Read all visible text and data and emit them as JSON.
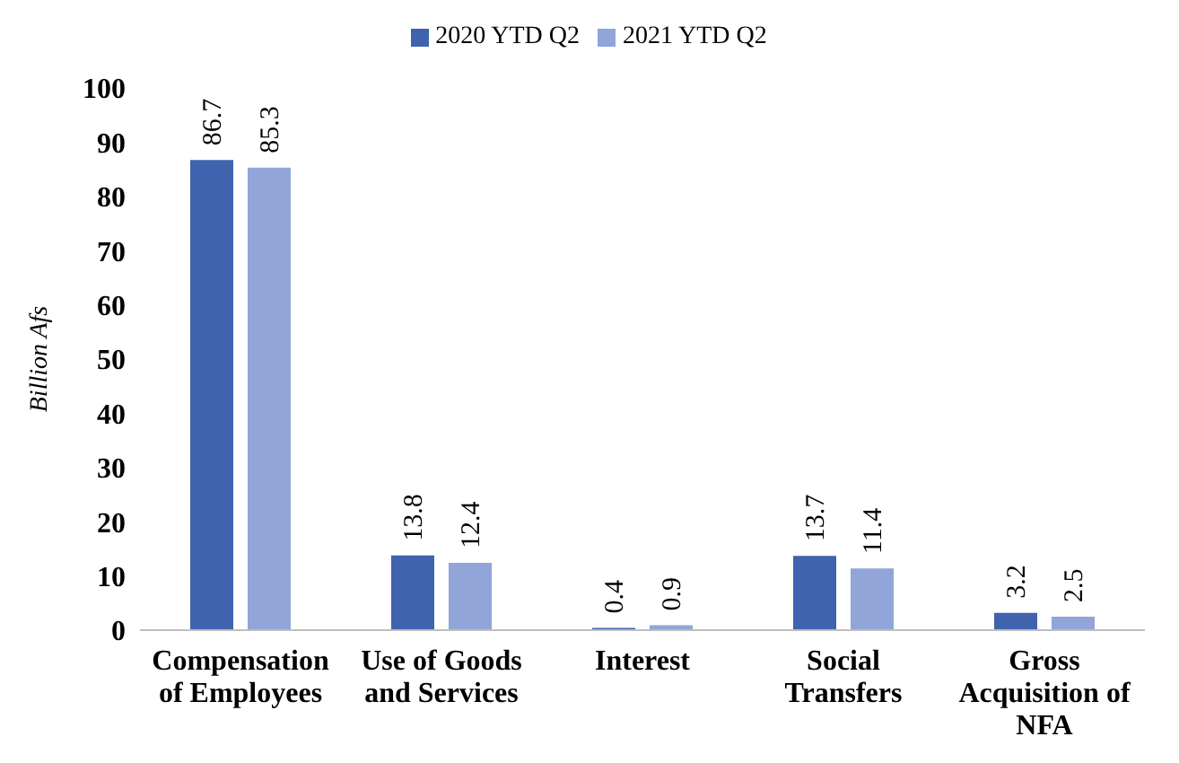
{
  "chart_data": {
    "type": "bar",
    "ylabel": "Billion Afs",
    "categories": [
      "Compensation of Employees",
      "Use of Goods and Services",
      "Interest",
      "Social Transfers",
      "Gross Acquisition of NFA"
    ],
    "series": [
      {
        "name": "2020 YTD Q2",
        "color": "#3f63ad",
        "values": [
          86.7,
          13.8,
          0.4,
          13.7,
          3.2
        ]
      },
      {
        "name": "2021 YTD Q2",
        "color": "#91a5d9",
        "values": [
          85.3,
          12.4,
          0.9,
          11.4,
          2.5
        ]
      }
    ],
    "ylim": [
      0,
      100
    ],
    "yticks": [
      0,
      10,
      20,
      30,
      40,
      50,
      60,
      70,
      80,
      90,
      100
    ],
    "grid": false,
    "legend": "top",
    "data_labels": true
  }
}
